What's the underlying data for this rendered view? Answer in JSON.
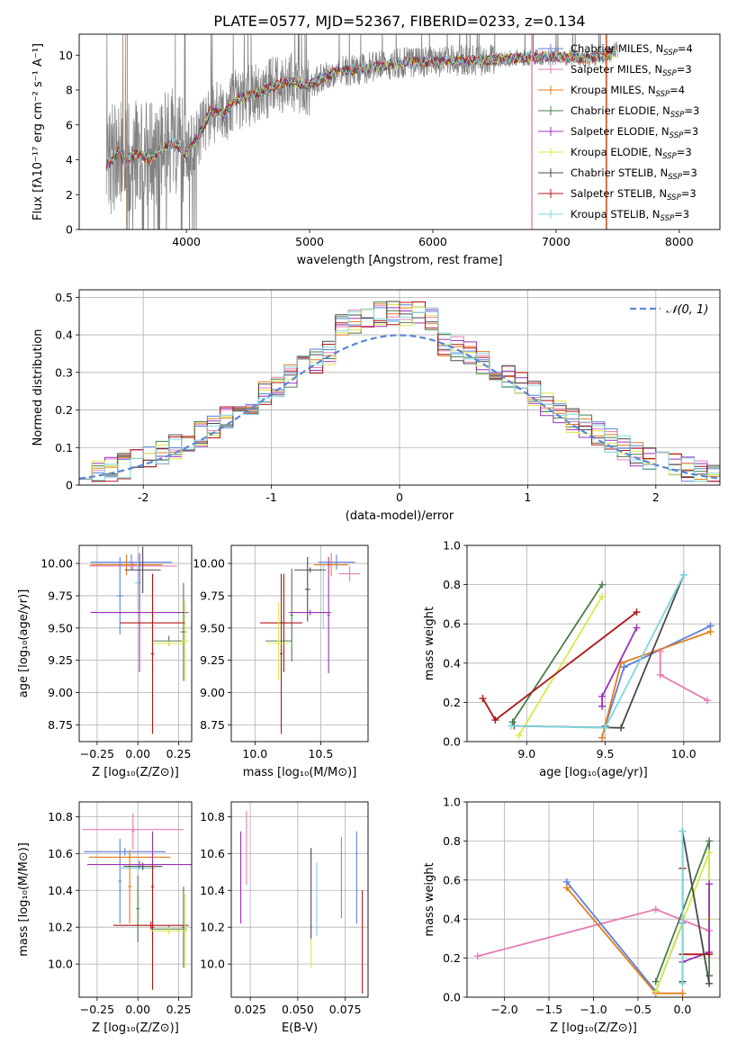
{
  "figure_title": "PLATE=0577, MJD=52367, FIBERID=0233, z=0.134",
  "colors": {
    "c0": "#5b7fde",
    "c1": "#e87bb4",
    "c2": "#e07d1a",
    "c3": "#4a7d4a",
    "c4": "#9b30b8",
    "c5": "#dbe84a",
    "c6": "#4a4a4a",
    "c7": "#b01818",
    "c8": "#7fd6dc",
    "data": "#808080"
  },
  "chart_data": [
    {
      "id": "spectrum",
      "type": "line",
      "xlabel": "wavelength [Angstrom, rest frame]",
      "ylabel": "Flux [fλ10⁻¹⁷ erg cm⁻² s⁻¹ A⁻¹]",
      "xlim": [
        3130,
        8330
      ],
      "ylim": [
        0,
        11.2
      ],
      "xticks": [
        4000,
        5000,
        6000,
        7000,
        8000
      ],
      "yticks": [
        0,
        2,
        4,
        6,
        8,
        10
      ],
      "grid": false,
      "legend_position": "upper-right",
      "continuum": {
        "x": [
          3350,
          3450,
          3500,
          3600,
          3700,
          3800,
          3900,
          4000,
          4100,
          4200,
          4300,
          4400,
          4600,
          4800,
          5000,
          5200,
          5400,
          5600,
          5800,
          6000,
          6200,
          6400,
          6600,
          6800,
          7000,
          7200,
          7400,
          7500
        ],
        "y": [
          3.6,
          4.5,
          3.9,
          4.4,
          4.0,
          4.6,
          5.0,
          4.3,
          5.4,
          6.8,
          6.6,
          7.4,
          7.9,
          8.5,
          8.3,
          9.0,
          9.2,
          9.4,
          9.6,
          9.6,
          9.7,
          9.7,
          9.8,
          9.9,
          9.9,
          9.8,
          9.9,
          10.3
        ]
      },
      "series": [
        {
          "name": "Chabrier MILES, N",
          "sub": "SSP",
          "tail": "=4",
          "color_key": "c0"
        },
        {
          "name": "Salpeter MILES, N",
          "sub": "SSP",
          "tail": "=3",
          "color_key": "c1"
        },
        {
          "name": "Kroupa MILES, N",
          "sub": "SSP",
          "tail": "=4",
          "color_key": "c2"
        },
        {
          "name": "Chabrier ELODIE, N",
          "sub": "SSP",
          "tail": "=3",
          "color_key": "c3"
        },
        {
          "name": "Salpeter ELODIE, N",
          "sub": "SSP",
          "tail": "=3",
          "color_key": "c4"
        },
        {
          "name": "Kroupa ELODIE, N",
          "sub": "SSP",
          "tail": "=3",
          "color_key": "c5"
        },
        {
          "name": "Chabrier STELIB, N",
          "sub": "SSP",
          "tail": "=3",
          "color_key": "c6"
        },
        {
          "name": "Salpeter STELIB, N",
          "sub": "SSP",
          "tail": "=3",
          "color_key": "c7"
        },
        {
          "name": "Kroupa STELIB, N",
          "sub": "SSP",
          "tail": "=3",
          "color_key": "c8"
        }
      ]
    },
    {
      "id": "residuals",
      "type": "histogram",
      "xlabel": "(data-model)/error",
      "ylabel": "Normed distribution",
      "xlim": [
        -2.5,
        2.5
      ],
      "ylim": [
        0,
        0.52
      ],
      "xticks": [
        -2,
        -1,
        0,
        1,
        2
      ],
      "yticks": [
        0.0,
        0.1,
        0.2,
        0.3,
        0.4,
        0.5
      ],
      "grid": true,
      "legend_position": "upper-right",
      "reference_label": "𝒩(0, 1)",
      "bin_width": 0.1,
      "bin_start": -2.5
    },
    {
      "id": "age_vs_Z",
      "type": "errorbar",
      "xlabel": "Z [log₁₀(Z/Z⊙)]",
      "ylabel": "age  [log₁₀(age/yr)]",
      "xlim": [
        -0.36,
        0.33
      ],
      "ylim": [
        8.62,
        10.14
      ],
      "xticks": [
        -0.25,
        0.0,
        0.25
      ],
      "xtick_labels": [
        "−0.25",
        "0.00",
        "0.25"
      ],
      "yticks": [
        8.75,
        9.0,
        9.25,
        9.5,
        9.75,
        10.0
      ],
      "ytick_labels": [
        "8.75",
        "9.00",
        "9.25",
        "9.50",
        "9.75",
        "10.00"
      ],
      "grid": true,
      "points": [
        {
          "x": -0.04,
          "xerr": 0.25,
          "y": 10.01,
          "yerr": 0.06,
          "c": "c0"
        },
        {
          "x": -0.03,
          "xerr": 0.27,
          "y": 9.98,
          "yerr": 0.03,
          "c": "c1"
        },
        {
          "x": -0.07,
          "xerr": 0.22,
          "y": 9.99,
          "yerr": 0.08,
          "c": "c2"
        },
        {
          "x": 0.0,
          "xerr": 0.02,
          "y": 9.85,
          "yerr": 0.2,
          "c": "c8"
        },
        {
          "x": 0.03,
          "xerr": 0.11,
          "y": 9.95,
          "yerr": 0.18,
          "c": "c6"
        },
        {
          "x": -0.11,
          "xerr": 0.02,
          "y": 9.75,
          "yerr": 0.3,
          "c": "c0"
        },
        {
          "x": 0.01,
          "xerr": 0.3,
          "y": 9.62,
          "yerr": 0.46,
          "c": "c4"
        },
        {
          "x": 0.09,
          "xerr": 0.2,
          "y": 9.54,
          "yerr": 0.38,
          "c": "c7"
        },
        {
          "x": 0.09,
          "xerr": 0.01,
          "y": 9.3,
          "yerr": 0.62,
          "c": "c7"
        },
        {
          "x": 0.19,
          "xerr": 0.1,
          "y": 9.4,
          "yerr": 0.04,
          "c": "c3"
        },
        {
          "x": 0.28,
          "xerr": 0.02,
          "y": 9.47,
          "yerr": 0.38,
          "c": "c3"
        },
        {
          "x": 0.19,
          "xerr": 0.09,
          "y": 9.38,
          "yerr": 0.02,
          "c": "c5"
        },
        {
          "x": 0.29,
          "xerr": 0.02,
          "y": 9.4,
          "yerr": 0.31,
          "c": "c5"
        }
      ]
    },
    {
      "id": "age_vs_mass",
      "type": "errorbar",
      "xlabel": "mass [log₁₀(M/M⊙)]",
      "ylabel": "",
      "xlim": [
        9.82,
        10.86
      ],
      "ylim": [
        8.62,
        10.14
      ],
      "xticks": [
        10.0,
        10.5
      ],
      "xtick_labels": [
        "10.0",
        "10.5"
      ],
      "yticks": [
        8.75,
        9.0,
        9.25,
        9.5,
        9.75,
        10.0
      ],
      "ytick_labels": [
        "8.75",
        "9.00",
        "9.25",
        "9.50",
        "9.75",
        "10.00"
      ],
      "grid": true,
      "points": [
        {
          "x": 10.62,
          "xerr": 0.14,
          "y": 10.01,
          "yerr": 0.06,
          "c": "c0"
        },
        {
          "x": 10.72,
          "xerr": 0.08,
          "y": 9.92,
          "yerr": 0.06,
          "c": "c1"
        },
        {
          "x": 10.58,
          "xerr": 0.13,
          "y": 9.99,
          "yerr": 0.09,
          "c": "c2"
        },
        {
          "x": 10.42,
          "xerr": 0.12,
          "y": 9.95,
          "yerr": 0.02,
          "c": "c6"
        },
        {
          "x": 10.4,
          "xerr": 0.02,
          "y": 9.8,
          "yerr": 0.25,
          "c": "c6"
        },
        {
          "x": 10.52,
          "xerr": 0.01,
          "y": 9.75,
          "yerr": 0.26,
          "c": "c8"
        },
        {
          "x": 10.28,
          "xerr": 0.01,
          "y": 9.6,
          "yerr": 0.36,
          "c": "c3"
        },
        {
          "x": 10.42,
          "xerr": 0.16,
          "y": 9.62,
          "yerr": 0.02,
          "c": "c4"
        },
        {
          "x": 10.56,
          "xerr": 0.01,
          "y": 9.6,
          "yerr": 0.45,
          "c": "c4"
        },
        {
          "x": 10.22,
          "xerr": 0.02,
          "y": 9.54,
          "yerr": 0.38,
          "c": "c7"
        },
        {
          "x": 10.2,
          "xerr": 0.16,
          "y": 9.54,
          "yerr": 0.02,
          "c": "c7"
        },
        {
          "x": 10.2,
          "xerr": 0.01,
          "y": 9.3,
          "yerr": 0.62,
          "c": "c7"
        },
        {
          "x": 10.18,
          "xerr": 0.1,
          "y": 9.4,
          "yerr": 0.02,
          "c": "c3"
        },
        {
          "x": 10.18,
          "xerr": 0.08,
          "y": 9.38,
          "yerr": 0.02,
          "c": "c5"
        },
        {
          "x": 10.18,
          "xerr": 0.01,
          "y": 9.4,
          "yerr": 0.3,
          "c": "c5"
        }
      ]
    },
    {
      "id": "massweight_vs_age",
      "type": "line",
      "xlabel": "age  [log₁₀(age/yr)]",
      "ylabel": "mass weight",
      "xlim": [
        8.62,
        10.23
      ],
      "ylim": [
        0,
        1.0
      ],
      "xticks": [
        9.0,
        9.5,
        10.0
      ],
      "xtick_labels": [
        "9.0",
        "9.5",
        "10.0"
      ],
      "yticks": [
        0.0,
        0.2,
        0.4,
        0.6,
        0.8,
        1.0
      ],
      "ytick_labels": [
        "0.0",
        "0.2",
        "0.4",
        "0.6",
        "0.8",
        "1.0"
      ],
      "grid": true,
      "series": [
        {
          "c": "c0",
          "x": [
            9.5,
            9.62,
            10.17
          ],
          "y": [
            0.08,
            0.38,
            0.59
          ]
        },
        {
          "c": "c2",
          "x": [
            9.48,
            9.6,
            10.17
          ],
          "y": [
            0.02,
            0.4,
            0.56
          ]
        },
        {
          "c": "c1",
          "x": [
            9.85,
            9.85,
            10.15
          ],
          "y": [
            0.46,
            0.34,
            0.21
          ]
        },
        {
          "c": "c3",
          "x": [
            8.91,
            9.48
          ],
          "y": [
            0.1,
            0.8
          ]
        },
        {
          "c": "c5",
          "x": [
            8.95,
            9.48
          ],
          "y": [
            0.03,
            0.74
          ]
        },
        {
          "c": "c4",
          "x": [
            9.48,
            9.48,
            9.7
          ],
          "y": [
            0.18,
            0.23,
            0.58
          ]
        },
        {
          "c": "c7",
          "x": [
            8.72,
            8.8,
            9.7
          ],
          "y": [
            0.22,
            0.11,
            0.66
          ]
        },
        {
          "c": "c6",
          "x": [
            8.92,
            9.6,
            10.0
          ],
          "y": [
            0.08,
            0.07,
            0.85
          ]
        },
        {
          "c": "c8",
          "x": [
            8.9,
            9.5,
            10.0
          ],
          "y": [
            0.08,
            0.07,
            0.85
          ]
        }
      ]
    },
    {
      "id": "mass_vs_Z",
      "type": "errorbar",
      "xlabel": "Z [log₁₀(Z/Z⊙)]",
      "ylabel": "mass [log₁₀(M/M⊙)]",
      "xlim": [
        -0.36,
        0.33
      ],
      "ylim": [
        9.82,
        10.88
      ],
      "xticks": [
        -0.25,
        0.0,
        0.25
      ],
      "xtick_labels": [
        "−0.25",
        "0.00",
        "0.25"
      ],
      "yticks": [
        10.0,
        10.2,
        10.4,
        10.6,
        10.8
      ],
      "ytick_labels": [
        "10.0",
        "10.2",
        "10.4",
        "10.6",
        "10.8"
      ],
      "grid": true,
      "points": [
        {
          "x": -0.03,
          "xerr": 0.31,
          "y": 10.73,
          "yerr": 0.02,
          "c": "c1"
        },
        {
          "x": -0.03,
          "xerr": 0.01,
          "y": 10.72,
          "yerr": 0.1,
          "c": "c1"
        },
        {
          "x": -0.08,
          "xerr": 0.25,
          "y": 10.61,
          "yerr": 0.02,
          "c": "c0"
        },
        {
          "x": -0.11,
          "xerr": 0.01,
          "y": 10.45,
          "yerr": 0.23,
          "c": "c0"
        },
        {
          "x": -0.05,
          "xerr": 0.25,
          "y": 10.58,
          "yerr": 0.02,
          "c": "c2"
        },
        {
          "x": -0.05,
          "xerr": 0.01,
          "y": 10.42,
          "yerr": 0.2,
          "c": "c2"
        },
        {
          "x": 0.0,
          "xerr": 0.11,
          "y": 10.52,
          "yerr": 0.02,
          "c": "c8"
        },
        {
          "x": 0.0,
          "xerr": 0.01,
          "y": 10.3,
          "yerr": 0.18,
          "c": "c3"
        },
        {
          "x": 0.03,
          "xerr": 0.12,
          "y": 10.53,
          "yerr": 0.02,
          "c": "c6"
        },
        {
          "x": 0.01,
          "xerr": 0.32,
          "y": 10.54,
          "yerr": 0.02,
          "c": "c4"
        },
        {
          "x": 0.09,
          "xerr": 0.01,
          "y": 10.42,
          "yerr": 0.3,
          "c": "c4"
        },
        {
          "x": 0.08,
          "xerr": 0.23,
          "y": 10.21,
          "yerr": 0.02,
          "c": "c7"
        },
        {
          "x": 0.09,
          "xerr": 0.01,
          "y": 10.2,
          "yerr": 0.34,
          "c": "c7"
        },
        {
          "x": 0.19,
          "xerr": 0.11,
          "y": 10.19,
          "yerr": 0.02,
          "c": "c3"
        },
        {
          "x": 0.28,
          "xerr": 0.01,
          "y": 10.2,
          "yerr": 0.22,
          "c": "c3"
        },
        {
          "x": 0.19,
          "xerr": 0.11,
          "y": 10.18,
          "yerr": 0.02,
          "c": "c5"
        },
        {
          "x": 0.29,
          "xerr": 0.01,
          "y": 10.18,
          "yerr": 0.2,
          "c": "c5"
        }
      ]
    },
    {
      "id": "mass_vs_ebv",
      "type": "errorbar",
      "xlabel": "E(B-V)",
      "ylabel": "",
      "xlim": [
        0.015,
        0.087
      ],
      "ylim": [
        9.82,
        10.88
      ],
      "xticks": [
        0.025,
        0.05,
        0.075
      ],
      "xtick_labels": [
        "0.025",
        "0.050",
        "0.075"
      ],
      "yticks": [
        10.0,
        10.2,
        10.4,
        10.6,
        10.8
      ],
      "ytick_labels": [
        "10.0",
        "10.2",
        "10.4",
        "10.6",
        "10.8"
      ],
      "grid": true,
      "points": [
        {
          "x": 0.02,
          "xerr": 0,
          "y": 10.47,
          "yerr": 0.25,
          "c": "c4"
        },
        {
          "x": 0.023,
          "xerr": 0,
          "y": 10.63,
          "yerr": 0.2,
          "c": "c1"
        },
        {
          "x": 0.057,
          "xerr": 0,
          "y": 10.38,
          "yerr": 0.25,
          "c": "c6"
        },
        {
          "x": 0.057,
          "xerr": 0,
          "y": 10.06,
          "yerr": 0.08,
          "c": "c5"
        },
        {
          "x": 0.06,
          "xerr": 0,
          "y": 10.35,
          "yerr": 0.2,
          "c": "c8"
        },
        {
          "x": 0.073,
          "xerr": 0,
          "y": 10.47,
          "yerr": 0.22,
          "c": "c2"
        },
        {
          "x": 0.081,
          "xerr": 0,
          "y": 10.47,
          "yerr": 0.25,
          "c": "c0"
        },
        {
          "x": 0.084,
          "xerr": 0,
          "y": 10.12,
          "yerr": 0.28,
          "c": "c7"
        }
      ]
    },
    {
      "id": "massweight_vs_Z",
      "type": "line",
      "xlabel": "Z [log₁₀(Z/Z⊙)]",
      "ylabel": "mass weight",
      "xlim": [
        -2.42,
        0.42
      ],
      "ylim": [
        0,
        1.0
      ],
      "xticks": [
        -2.0,
        -1.5,
        -1.0,
        -0.5,
        0.0
      ],
      "xtick_labels": [
        "−2.0",
        "−1.5",
        "−1.0",
        "−0.5",
        "0.0"
      ],
      "yticks": [
        0.0,
        0.2,
        0.4,
        0.6,
        0.8,
        1.0
      ],
      "ytick_labels": [
        "0.0",
        "0.2",
        "0.4",
        "0.6",
        "0.8",
        "1.0"
      ],
      "grid": true,
      "series": [
        {
          "c": "c1",
          "x": [
            -2.3,
            -0.3,
            0.3
          ],
          "y": [
            0.21,
            0.45,
            0.34
          ]
        },
        {
          "c": "c0",
          "x": [
            -1.3,
            -0.3,
            0.0
          ],
          "y": [
            0.59,
            0.03,
            0.38
          ]
        },
        {
          "c": "c2",
          "x": [
            -1.3,
            -0.3,
            0.0
          ],
          "y": [
            0.56,
            0.02,
            0.02
          ]
        },
        {
          "c": "c3",
          "x": [
            -0.3,
            0.3,
            0.3
          ],
          "y": [
            0.08,
            0.8,
            0.11
          ]
        },
        {
          "c": "c5",
          "x": [
            -0.3,
            0.3,
            0.3
          ],
          "y": [
            0.03,
            0.74,
            0.4
          ]
        },
        {
          "c": "c4",
          "x": [
            0.0,
            0.3,
            0.3
          ],
          "y": [
            0.18,
            0.23,
            0.58
          ]
        },
        {
          "c": "c7",
          "x": [
            0.0,
            0.0,
            0.3
          ],
          "y": [
            0.66,
            0.22,
            0.22
          ]
        },
        {
          "c": "c6",
          "x": [
            0.0,
            0.0,
            0.3
          ],
          "y": [
            0.08,
            0.85,
            0.07
          ]
        },
        {
          "c": "c8",
          "x": [
            0.0,
            0.0
          ],
          "y": [
            0.07,
            0.85
          ]
        }
      ]
    }
  ]
}
